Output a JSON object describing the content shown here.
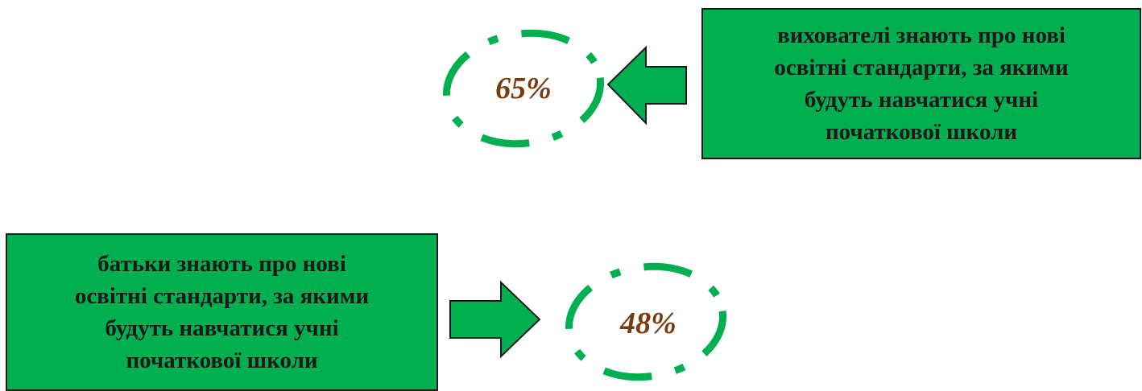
{
  "colors": {
    "green": "#00b050",
    "border": "#1a1a1a",
    "percent_text": "#7a3b10"
  },
  "top": {
    "percent": "65%",
    "lines": [
      "вихователі знають про нові",
      "освітні стандарти, за якими",
      "будуть навчатися учні",
      "початкової школи"
    ]
  },
  "bottom": {
    "percent": "48%",
    "lines": [
      "батьки знають про нові",
      "освітні стандарти, за якими",
      "будуть навчатися учні",
      "початкової школи"
    ]
  }
}
